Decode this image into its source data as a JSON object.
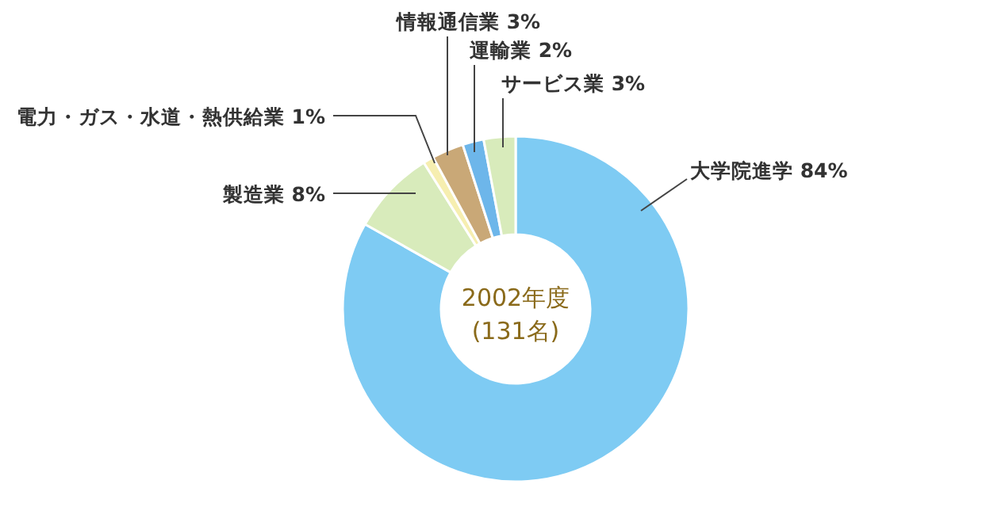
{
  "chart_data": {
    "type": "donut",
    "title": "2002年度",
    "subtitle": "(131名)",
    "categories": [
      "大学院進学",
      "製造業",
      "電力・ガス・水道・熱供給業",
      "情報通信業",
      "運輸業",
      "サービス業"
    ],
    "values": [
      84,
      8,
      1,
      3,
      2,
      3
    ],
    "value_labels": [
      "84%",
      "8%",
      "1%",
      "3%",
      "2%",
      "3%"
    ],
    "colors": [
      "#7ecbf3",
      "#d8ebbb",
      "#f6eeb0",
      "#c9a877",
      "#6db6ea",
      "#d8ebbb"
    ]
  }
}
